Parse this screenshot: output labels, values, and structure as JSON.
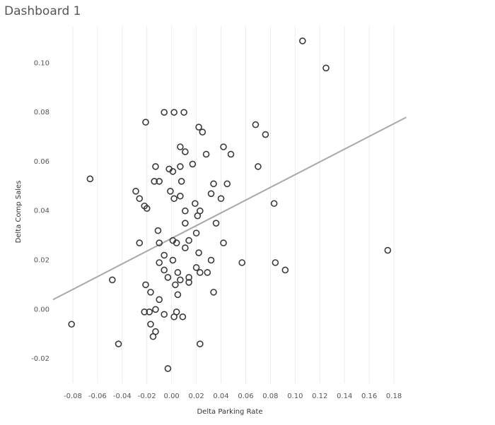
{
  "dashboard_title": "Dashboard 1",
  "chart_data": {
    "type": "scatter",
    "x_label": "Delta Parking Rate",
    "y_label": "Delta Comp Sales",
    "xlim": [
      -0.1,
      0.2
    ],
    "ylim": [
      -0.03,
      0.115
    ],
    "xticks": [
      {
        "value": -0.08,
        "label": "-0.08"
      },
      {
        "value": -0.06,
        "label": "-0.06"
      },
      {
        "value": -0.04,
        "label": "-0.04"
      },
      {
        "value": -0.02,
        "label": "-0.02"
      },
      {
        "value": 0,
        "label": "0.00"
      },
      {
        "value": 0.02,
        "label": "0.02"
      },
      {
        "value": 0.04,
        "label": "0.04"
      },
      {
        "value": 0.06,
        "label": "0.06"
      },
      {
        "value": 0.08,
        "label": "0.08"
      },
      {
        "value": 0.1,
        "label": "0.10"
      },
      {
        "value": 0.12,
        "label": "0.12"
      },
      {
        "value": 0.14,
        "label": "0.14"
      },
      {
        "value": 0.16,
        "label": "0.16"
      },
      {
        "value": 0.18,
        "label": "0.18"
      }
    ],
    "yticks": [
      {
        "value": -0.02,
        "label": "-0.02"
      },
      {
        "value": 0,
        "label": "0.00"
      },
      {
        "value": 0.02,
        "label": "0.02"
      },
      {
        "value": 0.04,
        "label": "0.04"
      },
      {
        "value": 0.06,
        "label": "0.06"
      },
      {
        "value": 0.08,
        "label": "0.08"
      },
      {
        "value": 0.1,
        "label": "0.10"
      }
    ],
    "x_grid": true,
    "color": "#3a3a3a",
    "trend_line": {
      "color": "#a8a8a8",
      "x": [
        -0.096,
        0.19
      ],
      "y": [
        0.004,
        0.078
      ]
    },
    "x": [
      0.106,
      0.125,
      -0.006,
      0.002,
      0.01,
      -0.021,
      0.022,
      0.025,
      0.068,
      0.076,
      -0.066,
      0.007,
      0.011,
      0.028,
      0.042,
      0.048,
      0.07,
      -0.013,
      -0.002,
      0.001,
      0.007,
      0.017,
      -0.01,
      -0.014,
      0.008,
      0.034,
      0.045,
      0.032,
      0.04,
      -0.029,
      -0.026,
      -0.022,
      -0.02,
      -0.001,
      0.002,
      0.007,
      0.083,
      0.019,
      0.023,
      0.021,
      0.011,
      0.011,
      0.036,
      -0.011,
      0.02,
      -0.026,
      -0.01,
      0.001,
      0.004,
      0.011,
      0.014,
      0.042,
      0.175,
      -0.006,
      0.001,
      -0.01,
      0.022,
      0.032,
      0.057,
      0.084,
      0.092,
      -0.006,
      0.005,
      0.02,
      0.023,
      0.029,
      -0.003,
      0.007,
      0.014,
      -0.048,
      -0.021,
      0.003,
      0.014,
      0.034,
      0.005,
      -0.017,
      -0.01,
      -0.013,
      -0.018,
      -0.022,
      -0.006,
      0.004,
      0.009,
      0.002,
      -0.017,
      -0.013,
      -0.015,
      -0.081,
      -0.043,
      0.023,
      -0.003
    ],
    "y": [
      0.109,
      0.098,
      0.08,
      0.08,
      0.08,
      0.076,
      0.074,
      0.072,
      0.075,
      0.071,
      0.053,
      0.066,
      0.064,
      0.063,
      0.066,
      0.063,
      0.058,
      0.058,
      0.057,
      0.056,
      0.058,
      0.059,
      0.052,
      0.052,
      0.052,
      0.051,
      0.051,
      0.047,
      0.045,
      0.048,
      0.045,
      0.042,
      0.041,
      0.048,
      0.045,
      0.046,
      0.043,
      0.043,
      0.04,
      0.038,
      0.04,
      0.035,
      0.035,
      0.032,
      0.031,
      0.027,
      0.027,
      0.028,
      0.027,
      0.025,
      0.028,
      0.027,
      0.024,
      0.022,
      0.02,
      0.019,
      0.023,
      0.02,
      0.019,
      0.019,
      0.016,
      0.016,
      0.015,
      0.017,
      0.015,
      0.015,
      0.013,
      0.012,
      0.013,
      0.012,
      0.01,
      0.01,
      0.011,
      0.007,
      0.006,
      0.007,
      0.004,
      0.0,
      -0.001,
      -0.001,
      -0.002,
      -0.001,
      -0.003,
      -0.003,
      -0.006,
      -0.009,
      -0.011,
      -0.006,
      -0.014,
      -0.014,
      -0.024
    ]
  }
}
